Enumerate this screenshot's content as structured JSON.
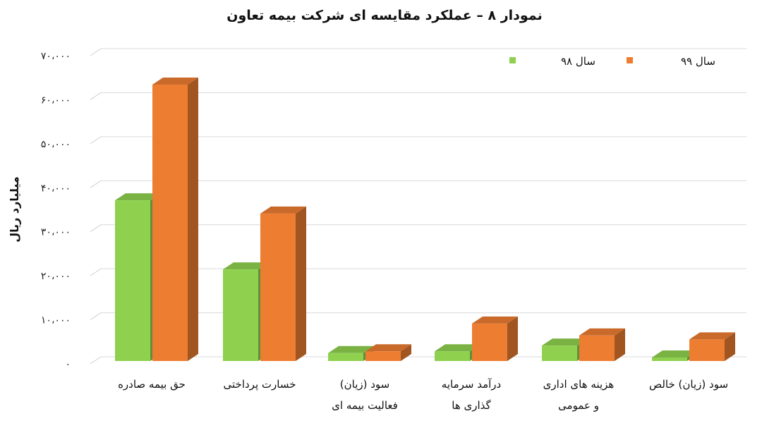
{
  "chart_data": {
    "type": "bar",
    "title": "نمودار ۸ – عملکرد مقایسه ای شرکت بیمه تعاون",
    "ylabel": "میلیارد ریال",
    "ylim": [
      0,
      70000
    ],
    "y_ticks": [
      "۰",
      "۱۰،۰۰۰",
      "۲۰،۰۰۰",
      "۳۰،۰۰۰",
      "۴۰،۰۰۰",
      "۵۰،۰۰۰",
      "۶۰،۰۰۰",
      "۷۰،۰۰۰"
    ],
    "y_tick_values": [
      0,
      10000,
      20000,
      30000,
      40000,
      50000,
      60000,
      70000
    ],
    "categories": [
      [
        "حق بیمه صادره"
      ],
      [
        "خسارت پرداختی"
      ],
      [
        "سود (زیان)",
        "فعالیت بیمه ای"
      ],
      [
        "درآمد سرمایه",
        "گذاری ها"
      ],
      [
        "هزینه های اداری",
        "و عمومی"
      ],
      [
        "سود (زیان) خالص"
      ]
    ],
    "series": [
      {
        "name": "سال ۹۸",
        "color": "#8fd14f",
        "values": [
          36500,
          20800,
          1800,
          2200,
          3500,
          800
        ]
      },
      {
        "name": "سال ۹۹",
        "color": "#ed7d31",
        "values": [
          62800,
          33500,
          2200,
          8500,
          5800,
          4900
        ]
      }
    ],
    "grid": true,
    "legend_position": "top-right"
  }
}
